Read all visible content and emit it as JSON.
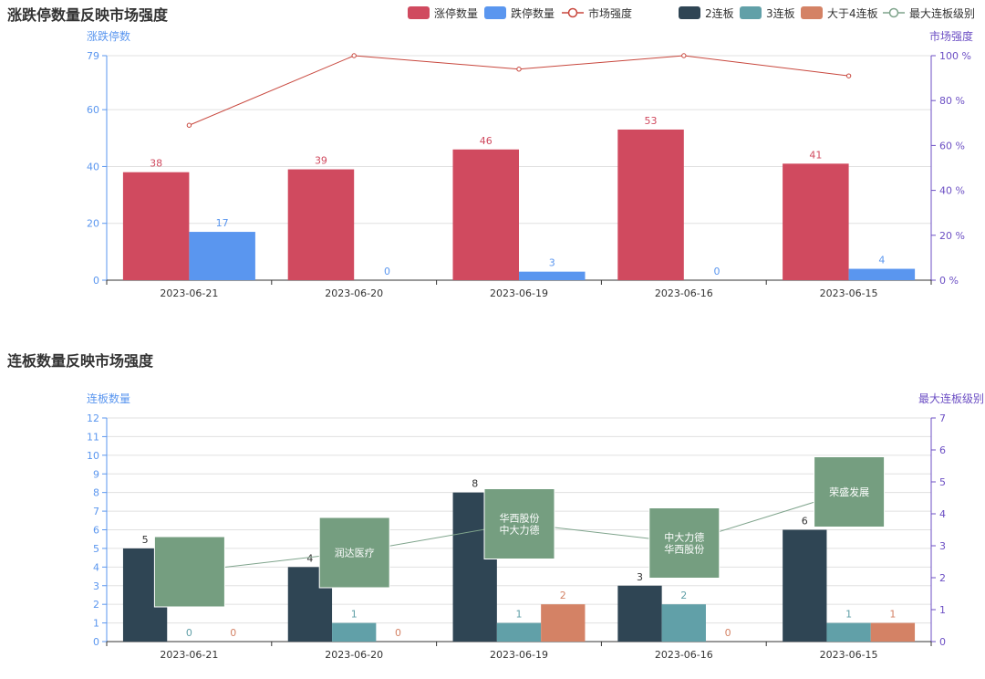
{
  "colors": {
    "limit_up": "#d04a5f",
    "limit_down": "#5a96ef",
    "strength": "#c8473d",
    "b2": "#2f4554",
    "b3": "#61a0a8",
    "b4plus": "#d48265",
    "max_level": "#7fa48c",
    "tooltip": "#759e80",
    "left_axis": "#5a96ef",
    "right_axis": "#6c4fc4",
    "grid": "#e0e0e0",
    "title": "#333333"
  },
  "chart_data": [
    {
      "type": "bar",
      "title": "涨跌停数量反映市场强度",
      "legend": [
        "涨停数量",
        "跌停数量",
        "市场强度"
      ],
      "categories": [
        "2023-06-21",
        "2023-06-20",
        "2023-06-19",
        "2023-06-16",
        "2023-06-15"
      ],
      "ylabel": "涨跌停数",
      "ylabel_right": "市场强度",
      "ylim": [
        0,
        79
      ],
      "yticks": [
        "0",
        "20",
        "40",
        "60",
        "79"
      ],
      "yticks_values": [
        0,
        20,
        40,
        60,
        79
      ],
      "ylim_right": [
        0,
        100
      ],
      "yticks_right": [
        "0 %",
        "20 %",
        "40 %",
        "60 %",
        "80 %",
        "100 %"
      ],
      "yticks_right_values": [
        0,
        20,
        40,
        60,
        80,
        100
      ],
      "series": [
        {
          "name": "涨停数量",
          "type": "bar",
          "values": [
            38,
            39,
            46,
            53,
            41
          ],
          "labels": [
            "38",
            "39",
            "46",
            "53",
            "41"
          ]
        },
        {
          "name": "跌停数量",
          "type": "bar",
          "values": [
            17,
            0,
            3,
            0,
            4
          ],
          "labels": [
            "17",
            "0",
            "3",
            "0",
            "4"
          ]
        },
        {
          "name": "市场强度",
          "type": "line",
          "axis": "right",
          "values": [
            69,
            100,
            94,
            100,
            91
          ]
        }
      ]
    },
    {
      "type": "bar",
      "title": "连板数量反映市场强度",
      "legend": [
        "2连板",
        "3连板",
        "大于4连板",
        "最大连板级别"
      ],
      "categories": [
        "2023-06-21",
        "2023-06-20",
        "2023-06-19",
        "2023-06-16",
        "2023-06-15"
      ],
      "ylabel": "连板数量",
      "ylabel_right": "最大连板级别",
      "ylim": [
        0,
        12
      ],
      "yticks": [
        "0",
        "1",
        "2",
        "3",
        "4",
        "5",
        "6",
        "7",
        "8",
        "9",
        "10",
        "11",
        "12"
      ],
      "yticks_values": [
        0,
        1,
        2,
        3,
        4,
        5,
        6,
        7,
        8,
        9,
        10,
        11,
        12
      ],
      "ylim_right": [
        0,
        7
      ],
      "yticks_right": [
        "0",
        "1",
        "2",
        "3",
        "4",
        "5",
        "6",
        "7"
      ],
      "yticks_right_values": [
        0,
        1,
        2,
        3,
        4,
        5,
        6,
        7
      ],
      "series": [
        {
          "name": "2连板",
          "type": "bar",
          "values": [
            5,
            4,
            8,
            3,
            6
          ],
          "labels": [
            "5",
            "4",
            "8",
            "3",
            "6"
          ]
        },
        {
          "name": "3连板",
          "type": "bar",
          "values": [
            0,
            1,
            1,
            2,
            1
          ],
          "labels": [
            "0",
            "1",
            "1",
            "2",
            "1"
          ]
        },
        {
          "name": "大于4连板",
          "type": "bar",
          "values": [
            0,
            0,
            2,
            0,
            1
          ],
          "labels": [
            "0",
            "0",
            "2",
            "0",
            "1"
          ]
        },
        {
          "name": "最大连板级别",
          "type": "line",
          "axis": "right",
          "values": [
            2.2,
            2.8,
            3.7,
            3.1,
            4.7
          ]
        }
      ],
      "annotations": [
        {
          "category": "2023-06-21",
          "lines": []
        },
        {
          "category": "2023-06-20",
          "lines": [
            "润达医疗"
          ]
        },
        {
          "category": "2023-06-19",
          "lines": [
            "华西股份",
            "中大力德"
          ]
        },
        {
          "category": "2023-06-16",
          "lines": [
            "中大力德",
            "华西股份"
          ]
        },
        {
          "category": "2023-06-15",
          "lines": [
            "荣盛发展"
          ]
        }
      ]
    }
  ]
}
